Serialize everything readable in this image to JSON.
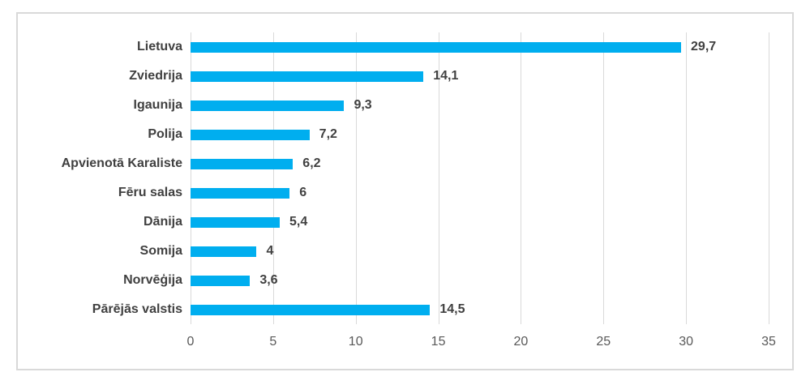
{
  "chart_data": {
    "type": "bar",
    "orientation": "horizontal",
    "categories": [
      "Lietuva",
      "Zviedrija",
      "Igaunija",
      "Polija",
      "Apvienotā Karaliste",
      "Fēru salas",
      "Dānija",
      "Somija",
      "Norvēģija",
      "Pārējās valstis"
    ],
    "values": [
      29.7,
      14.1,
      9.3,
      7.2,
      6.2,
      6,
      5.4,
      4,
      3.6,
      14.5
    ],
    "value_labels": [
      "29,7",
      "14,1",
      "9,3",
      "7,2",
      "6,2",
      "6",
      "5,4",
      "4",
      "3,6",
      "14,5"
    ],
    "x_ticks": [
      0,
      5,
      10,
      15,
      20,
      25,
      30,
      35
    ],
    "x_tick_labels": [
      "0",
      "5",
      "10",
      "15",
      "20",
      "25",
      "30",
      "35"
    ],
    "xlim": [
      0,
      35
    ],
    "grid": "vertical-only",
    "legend": "none",
    "colors": {
      "bar": "#00aeef",
      "gridline": "#d9d9d9",
      "frame_border": "#d9d9d9",
      "category_label": "#404040",
      "value_label": "#404040",
      "axis_tick_label": "#595959",
      "background": "#ffffff"
    }
  }
}
